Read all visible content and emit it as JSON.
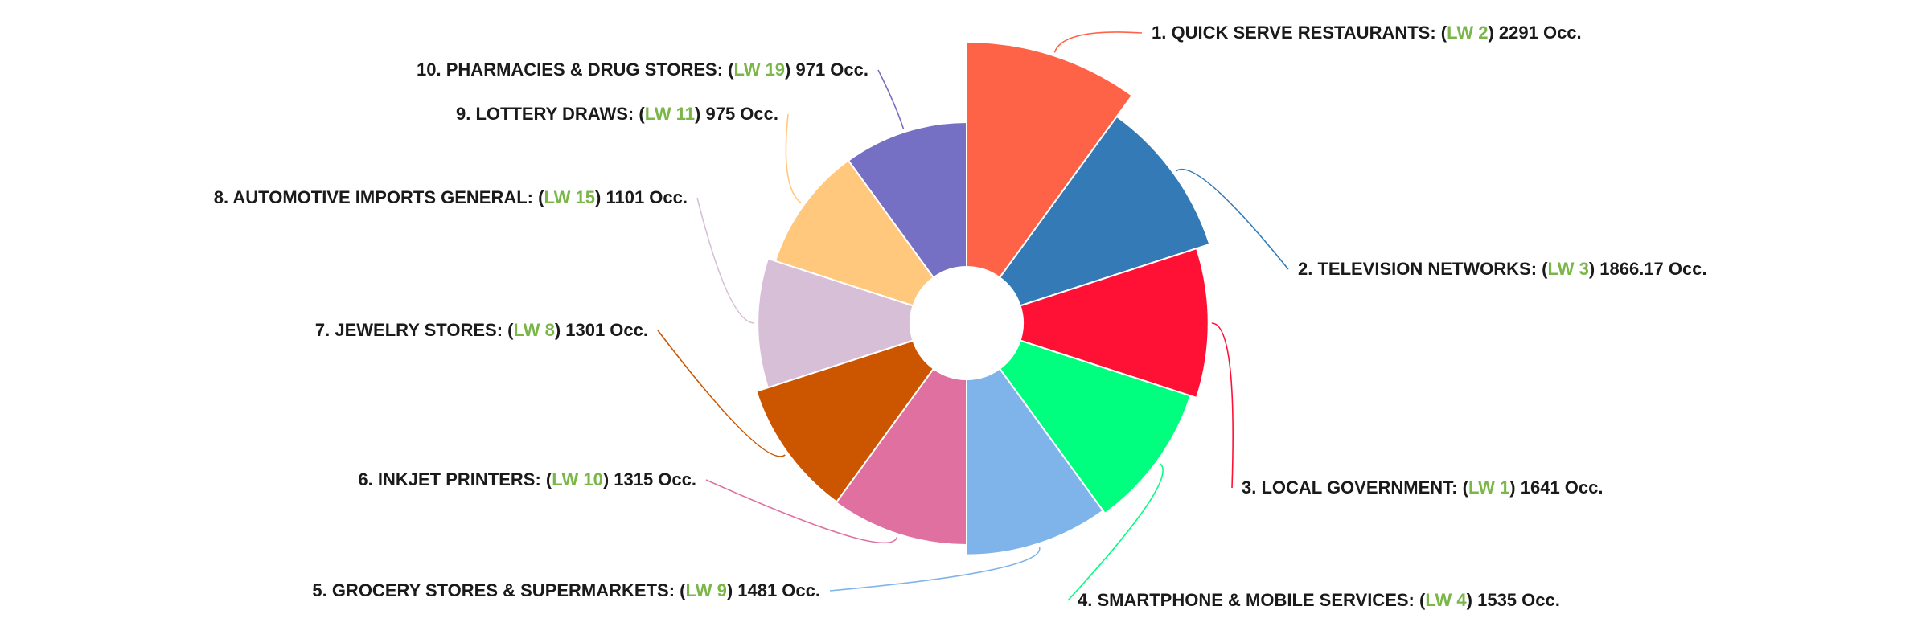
{
  "chart_data": {
    "type": "pie",
    "variant": "variable-radius donut (nightingale)",
    "legend": "none",
    "categories": [
      "1. QUICK SERVE RESTAURANTS",
      "2. TELEVISION NETWORKS",
      "3. LOCAL GOVERNMENT",
      "4. SMARTPHONE & MOBILE SERVICES",
      "5. GROCERY STORES & SUPERMARKETS",
      "6. INKJET PRINTERS",
      "7. JEWELRY STORES",
      "8. AUTOMOTIVE IMPORTS GENERAL",
      "9. LOTTERY DRAWS",
      "10. PHARMACIES & DRUG STORES"
    ],
    "lw_ranks": [
      "LW 2",
      "LW 3",
      "LW 1",
      "LW 4",
      "LW 9",
      "LW 10",
      "LW 8",
      "LW 15",
      "LW 11",
      "LW 19"
    ],
    "values": [
      2291,
      1866.17,
      1641,
      1535,
      1481,
      1315,
      1301,
      1101,
      975,
      971
    ],
    "value_suffix": "Occ.",
    "colors": [
      "#ff6347",
      "#337ab7",
      "#ff1136",
      "#00ff7f",
      "#7eb4ea",
      "#e070a0",
      "#cc5500",
      "#d8bfd8",
      "#ffc87c",
      "#7570c4"
    ],
    "lw_color": "#7ab648"
  }
}
